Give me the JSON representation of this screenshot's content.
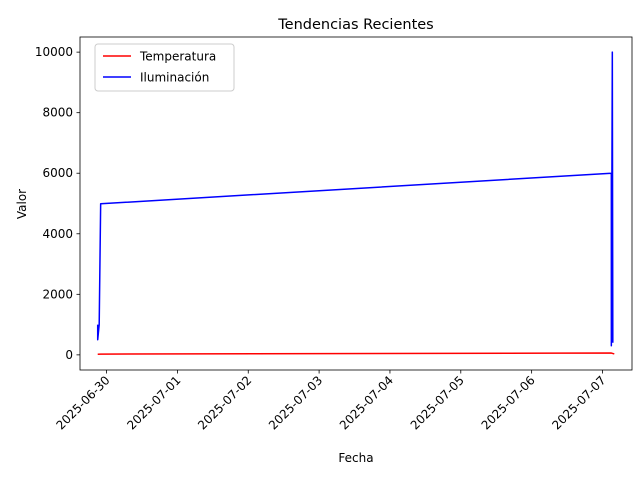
{
  "chart_data": {
    "type": "line",
    "title": "Tendencias Recientes",
    "xlabel": "Fecha",
    "ylabel": "Valor",
    "ylim": [
      -500,
      10500
    ],
    "xlim": [
      "2025-06-29T15:00",
      "2025-07-07T10:00"
    ],
    "x_ticks": [
      "2025-06-30",
      "2025-07-01",
      "2025-07-02",
      "2025-07-03",
      "2025-07-04",
      "2025-07-05",
      "2025-07-06",
      "2025-07-07"
    ],
    "y_ticks": [
      0,
      2000,
      4000,
      6000,
      8000,
      10000
    ],
    "legend_position": "top-left",
    "grid": false,
    "series": [
      {
        "name": "Temperatura",
        "color": "#ff0000",
        "points": [
          {
            "x": "2025-06-29T21:00",
            "y": 22
          },
          {
            "x": "2025-06-29T22:00",
            "y": 25
          },
          {
            "x": "2025-07-07T03:00",
            "y": 60
          },
          {
            "x": "2025-07-07T04:00",
            "y": 30
          }
        ]
      },
      {
        "name": "Iluminación",
        "color": "#0000ff",
        "points": [
          {
            "x": "2025-06-29T21:00",
            "y": 1000
          },
          {
            "x": "2025-06-29T21:00",
            "y": 500
          },
          {
            "x": "2025-06-29T21:30",
            "y": 1000
          },
          {
            "x": "2025-06-29T22:00",
            "y": 4990
          },
          {
            "x": "2025-07-07T03:00",
            "y": 6000
          },
          {
            "x": "2025-07-07T03:00",
            "y": 300
          },
          {
            "x": "2025-07-07T03:20",
            "y": 10000
          },
          {
            "x": "2025-07-07T03:30",
            "y": 400
          }
        ]
      }
    ]
  }
}
